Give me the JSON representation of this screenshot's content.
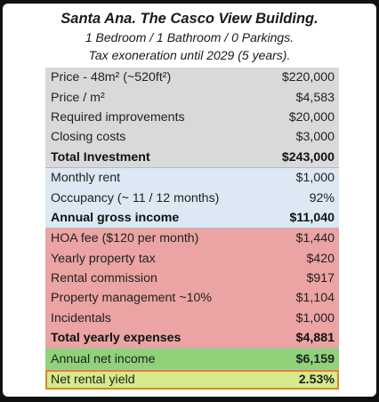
{
  "header": {
    "title": "Santa Ana. The Casco View Building.",
    "line1": "1 Bedroom / 1 Bathroom / 0 Parkings.",
    "line2": "Tax exoneration until 2029 (5 years)."
  },
  "investment": {
    "rows": [
      {
        "label": "Price - 48m² (~520ft²)",
        "value": "$220,000"
      },
      {
        "label": "Price / m²",
        "value": "$4,583"
      },
      {
        "label": "Required improvements",
        "value": "$20,000"
      },
      {
        "label": "Closing costs",
        "value": "$3,000"
      }
    ],
    "total": {
      "label": "Total Investment",
      "value": "$243,000"
    }
  },
  "income": {
    "rows": [
      {
        "label": "Monthly rent",
        "value": "$1,000"
      },
      {
        "label": "Occupancy (~ 11 / 12 months)",
        "value": "92%"
      }
    ],
    "total": {
      "label": "Annual gross income",
      "value": "$11,040"
    }
  },
  "expenses": {
    "rows": [
      {
        "label": "HOA fee ($120 per month)",
        "value": "$1,440"
      },
      {
        "label": "Yearly property tax",
        "value": "$420"
      },
      {
        "label": "Rental commission",
        "value": "$917"
      },
      {
        "label": "Property management ~10%",
        "value": "$1,104"
      },
      {
        "label": "Incidentals",
        "value": "$1,000"
      }
    ],
    "total": {
      "label": "Total yearly expenses",
      "value": "$4,881"
    }
  },
  "net": {
    "income": {
      "label": "Annual net income",
      "value": "$6,159"
    },
    "yield": {
      "label": "Net rental yield",
      "value": "2.53%"
    }
  },
  "colors": {
    "investment_bg": "#d9d9d9",
    "income_bg": "#dce8f3",
    "expenses_bg": "#eba3a3",
    "net_income_bg": "#8fd27a",
    "yield_bg": "#d7e98a",
    "yield_outline": "#d9882a"
  }
}
